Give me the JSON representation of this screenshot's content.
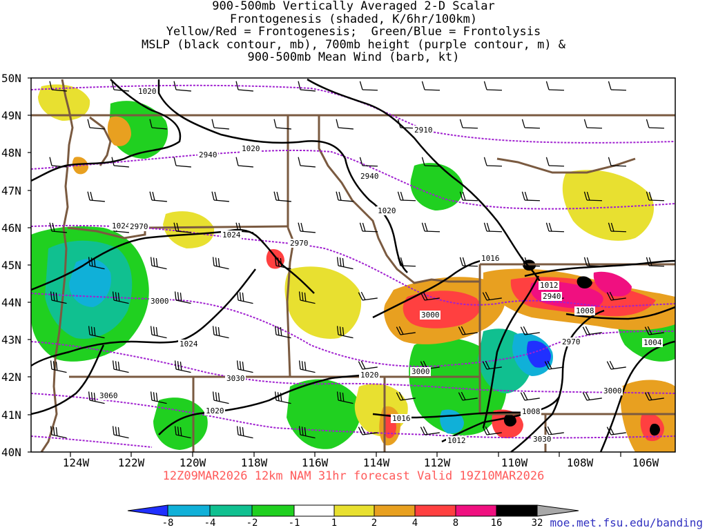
{
  "title_lines": [
    "900-500mb Vertically Averaged 2-D Scalar",
    "Frontogenesis (shaded, K/6hr/100km)",
    "Yellow/Red = Frontogenesis;  Green/Blue = Frontolysis",
    "MSLP (black contour, mb), 700mb height (purple contour, m) &",
    "900-500mb Mean Wind (barb, kt)"
  ],
  "map": {
    "lat_labels": [
      "50N",
      "49N",
      "48N",
      "47N",
      "46N",
      "45N",
      "44N",
      "43N",
      "42N",
      "41N",
      "40N"
    ],
    "lon_labels": [
      "124W",
      "122W",
      "120W",
      "118W",
      "116W",
      "114W",
      "112W",
      "110W",
      "108W",
      "106W"
    ],
    "mslp_labels": [
      "1020",
      "1020",
      "1020",
      "1024",
      "1024",
      "1024",
      "1020",
      "1020",
      "1016",
      "1016",
      "1012",
      "1012",
      "1008",
      "1008",
      "1004",
      "1020"
    ],
    "height_labels": [
      "2910",
      "2940",
      "2940",
      "2970",
      "2970",
      "3000",
      "3000",
      "3000",
      "3030",
      "3060",
      "2970",
      "2940",
      "2970",
      "3030",
      "3000"
    ],
    "colors": {
      "state_border": "#7a5a40",
      "mslp": "#000000",
      "height": "#a020d0",
      "neg8": "#2030ff",
      "neg4": "#10b0d8",
      "neg2": "#10c090",
      "neg1": "#20d020",
      "pos1": "#e8e030",
      "pos2": "#e8a020",
      "pos4": "#ff4040",
      "pos8": "#f01080",
      "pos16": "#000000"
    }
  },
  "forecast_label": "12Z09MAR2026 12km NAM 31hr forecast Valid 19Z10MAR2026",
  "colorbar": {
    "ticks": [
      "-8",
      "-4",
      "-2",
      "-1",
      "1",
      "2",
      "4",
      "8",
      "16",
      "32"
    ],
    "colors": [
      "#2030ff",
      "#10b0d8",
      "#10c090",
      "#20d020",
      "#ffffff",
      "#e8e030",
      "#e8a020",
      "#ff4040",
      "#f01080",
      "#000000",
      "#a8a8a8"
    ]
  },
  "credit": "moe.met.fsu.edu/banding"
}
